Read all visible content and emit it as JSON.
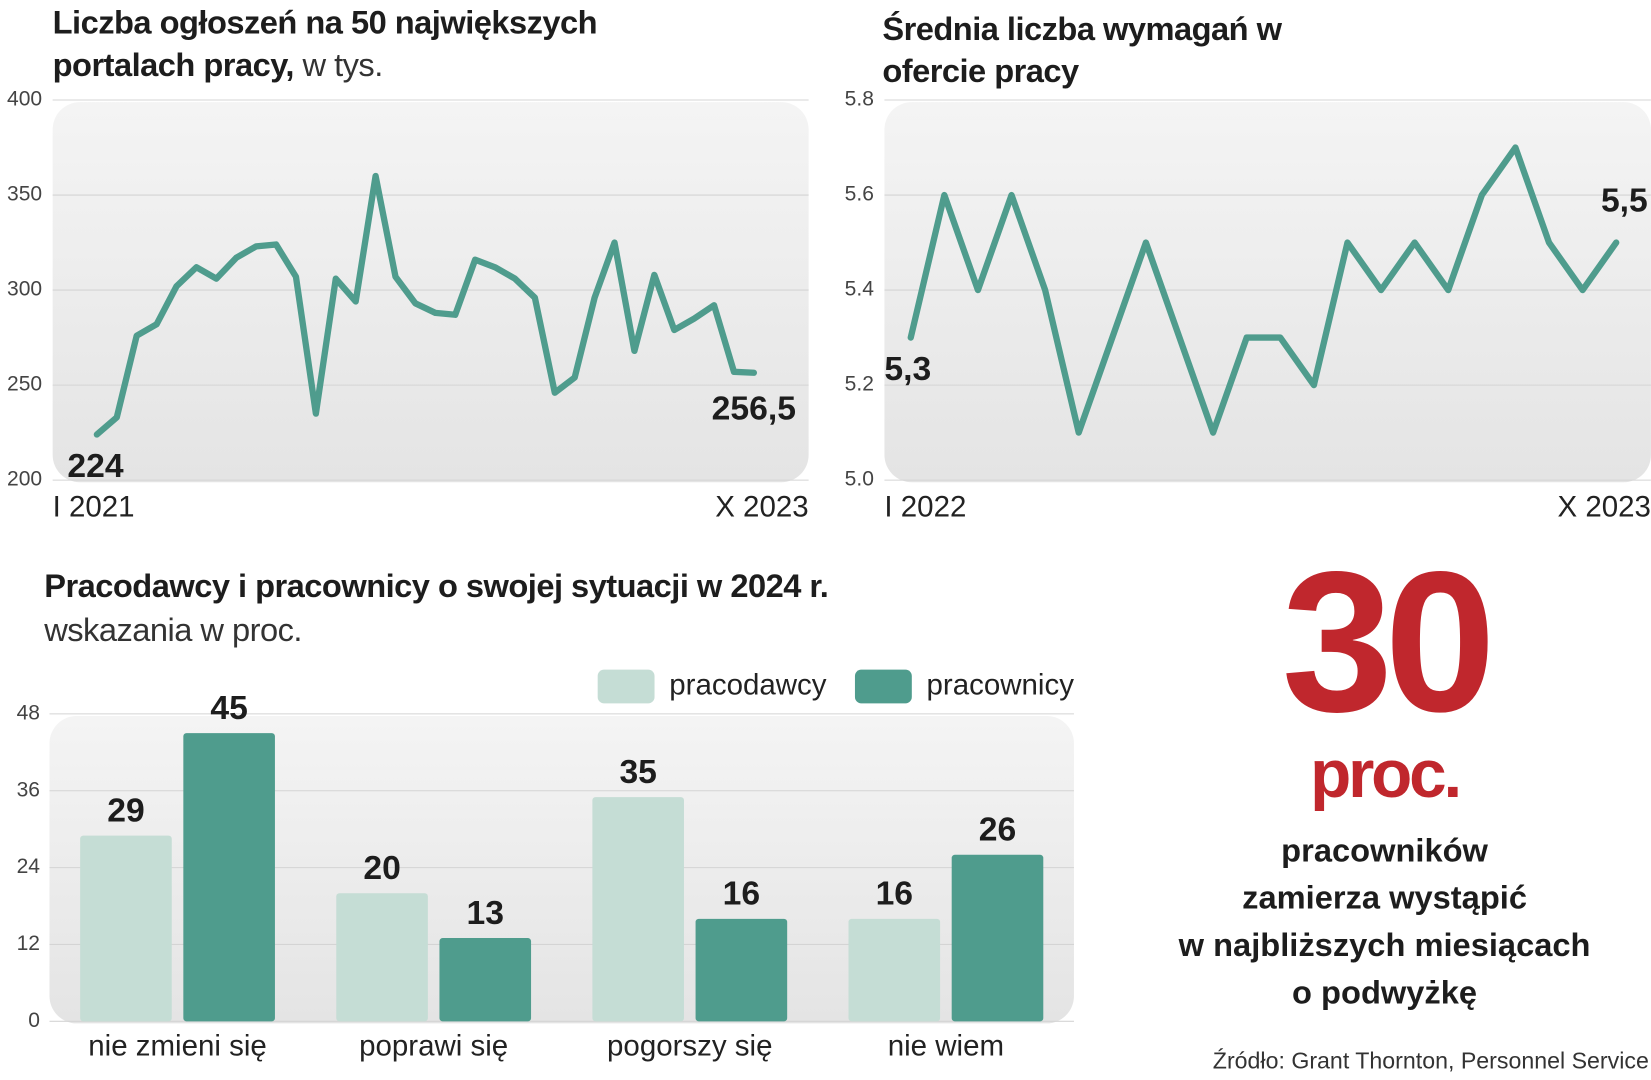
{
  "chart_data": [
    {
      "type": "line",
      "title": "Liczba ogłoszeń na 50 największych portalach pracy,",
      "subtitle": "w tys.",
      "categories": [
        "I 2021",
        null,
        null,
        null,
        null,
        null,
        null,
        null,
        null,
        null,
        null,
        null,
        null,
        null,
        null,
        null,
        null,
        null,
        null,
        null,
        null,
        null,
        null,
        null,
        null,
        null,
        null,
        null,
        null,
        null,
        null,
        null,
        null,
        "X 2023"
      ],
      "values": [
        224,
        233,
        276,
        282,
        302,
        312,
        306,
        317,
        323,
        324,
        307,
        235,
        306,
        294,
        360,
        307,
        293,
        288,
        287,
        316,
        312,
        306,
        296,
        246,
        254,
        296,
        325,
        268,
        308,
        279,
        285,
        292,
        257,
        256.5
      ],
      "value_labels": [
        "224",
        null,
        null,
        null,
        null,
        null,
        null,
        null,
        null,
        null,
        null,
        null,
        null,
        null,
        null,
        null,
        null,
        null,
        null,
        null,
        null,
        null,
        null,
        null,
        null,
        null,
        null,
        null,
        null,
        null,
        null,
        null,
        null,
        "256,5"
      ],
      "color": "#4f9c8d",
      "ylim": [
        200,
        400
      ],
      "yticks": [
        200,
        250,
        300,
        350,
        400
      ],
      "grid": true
    },
    {
      "type": "line",
      "title": "Średnia liczba wymagań w ofercie pracy",
      "categories": [
        "I 2022",
        null,
        null,
        null,
        null,
        null,
        null,
        null,
        null,
        null,
        null,
        null,
        null,
        null,
        null,
        null,
        null,
        null,
        null,
        null,
        null,
        "X 2023"
      ],
      "values": [
        5.3,
        5.6,
        5.4,
        5.6,
        5.4,
        5.1,
        5.3,
        5.5,
        5.3,
        5.1,
        5.3,
        5.3,
        5.2,
        5.5,
        5.4,
        5.5,
        5.4,
        5.6,
        5.7,
        5.5,
        5.4,
        5.5
      ],
      "value_labels": [
        "5,3",
        null,
        null,
        null,
        null,
        null,
        null,
        null,
        null,
        null,
        null,
        null,
        null,
        null,
        null,
        null,
        null,
        null,
        null,
        null,
        null,
        "5,5"
      ],
      "color": "#4f9c8d",
      "ylim": [
        5.0,
        5.8
      ],
      "yticks": [
        {
          "value": 5.0,
          "label": "5.0"
        },
        5.2,
        5.4,
        5.6,
        5.8
      ],
      "grid": true
    },
    {
      "type": "bar",
      "title": "Pracodawcy i pracownicy o swojej sytuacji w 2024 r.",
      "subtitle": "wskazania w proc.",
      "categories": [
        "nie zmieni się",
        "poprawi się",
        "pogorszy się",
        "nie wiem"
      ],
      "series": [
        {
          "name": "pracodawcy",
          "color": "#c5ddd5",
          "values": [
            29,
            20,
            35,
            16
          ]
        },
        {
          "name": "pracownicy",
          "color": "#4f9c8d",
          "values": [
            45,
            13,
            16,
            26
          ]
        }
      ],
      "ylim": [
        0,
        48
      ],
      "yticks": [
        0,
        12,
        24,
        36,
        48
      ],
      "grid": true,
      "legend": "top-right"
    }
  ],
  "callout": {
    "value": 30,
    "unit": "proc.",
    "lines": [
      "pracowników",
      "zamierza wystąpić",
      "w najbliższych miesiącach",
      "o  podwyżkę"
    ]
  },
  "source": "Źródło: Grant Thornton, Personnel Service"
}
